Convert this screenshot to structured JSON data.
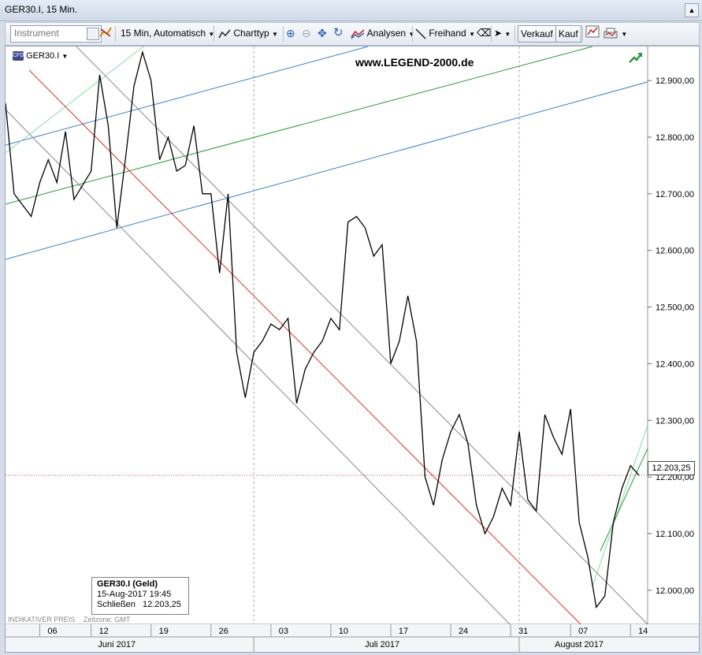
{
  "window": {
    "title": "GER30.I, 15 Min."
  },
  "toolbar": {
    "instrument_placeholder": "Instrument",
    "interval_label": "15 Min,",
    "scale_label": "Automatisch",
    "charttype_label": "Charttyp",
    "analysen_label": "Analysen",
    "freihand_label": "Freihand",
    "verkauf_label": "Verkauf",
    "kauf_label": "Kauf"
  },
  "chart": {
    "symbol": "GER30.I",
    "watermark": "www.LEGEND-2000.de",
    "current_price_label": "12.203,25",
    "indicative_price": "INDIKATIVER PREIS",
    "timezone": "Zeitzone: GMT",
    "info": {
      "title": "GER30.I (Geld)",
      "datetime": "15-Aug-2017 19:45",
      "close_label": "Schließen",
      "close_value": "12.203,25"
    },
    "colors": {
      "line": "#000000",
      "red_channel": "#e03020",
      "blue_channel": "#3a7fc8",
      "green_channel": "#2a9a3a",
      "grey_channel": "#888888",
      "mint": "#7de0a8"
    }
  },
  "chart_data": {
    "type": "line",
    "title": "GER30.I, 15 Min.",
    "y_tick_labels": [
      "12.900,00",
      "12.800,00",
      "12.700,00",
      "12.600,00",
      "12.500,00",
      "12.400,00",
      "12.300,00",
      "12.200,00",
      "12.100,00",
      "12.000,00"
    ],
    "y_ticks": [
      12900,
      12800,
      12700,
      12600,
      12500,
      12400,
      12300,
      12200,
      12100,
      12000
    ],
    "ylim": [
      11940,
      12960
    ],
    "x_tick_labels": [
      "06",
      "12",
      "19",
      "26",
      "03",
      "10",
      "17",
      "24",
      "31",
      "07",
      "14"
    ],
    "x_ticks": [
      "2017-06-06",
      "2017-06-12",
      "2017-06-19",
      "2017-06-26",
      "2017-07-03",
      "2017-07-10",
      "2017-07-17",
      "2017-07-24",
      "2017-07-31",
      "2017-08-07",
      "2017-08-14"
    ],
    "x_month_labels": [
      "Juni 2017",
      "Juli 2017",
      "August 2017"
    ],
    "xlim": [
      "2017-06-02",
      "2017-08-16"
    ],
    "series": [
      {
        "values": [
          [
            "2017-06-02",
            12860
          ],
          [
            "2017-06-03",
            12700
          ],
          [
            "2017-06-05",
            12660
          ],
          [
            "2017-06-06",
            12720
          ],
          [
            "2017-06-07",
            12760
          ],
          [
            "2017-06-08",
            12720
          ],
          [
            "2017-06-09",
            12810
          ],
          [
            "2017-06-10",
            12690
          ],
          [
            "2017-06-12",
            12740
          ],
          [
            "2017-06-13",
            12910
          ],
          [
            "2017-06-14",
            12820
          ],
          [
            "2017-06-15",
            12640
          ],
          [
            "2017-06-16",
            12760
          ],
          [
            "2017-06-17",
            12890
          ],
          [
            "2017-06-18",
            12950
          ],
          [
            "2017-06-19",
            12900
          ],
          [
            "2017-06-20",
            12760
          ],
          [
            "2017-06-21",
            12800
          ],
          [
            "2017-06-22",
            12740
          ],
          [
            "2017-06-23",
            12750
          ],
          [
            "2017-06-24",
            12820
          ],
          [
            "2017-06-25",
            12700
          ],
          [
            "2017-06-26",
            12700
          ],
          [
            "2017-06-27",
            12560
          ],
          [
            "2017-06-28",
            12700
          ],
          [
            "2017-06-29",
            12420
          ],
          [
            "2017-06-30",
            12340
          ],
          [
            "2017-07-01",
            12420
          ],
          [
            "2017-07-02",
            12440
          ],
          [
            "2017-07-03",
            12470
          ],
          [
            "2017-07-04",
            12460
          ],
          [
            "2017-07-05",
            12480
          ],
          [
            "2017-07-06",
            12330
          ],
          [
            "2017-07-07",
            12390
          ],
          [
            "2017-07-08",
            12420
          ],
          [
            "2017-07-09",
            12440
          ],
          [
            "2017-07-10",
            12480
          ],
          [
            "2017-07-11",
            12460
          ],
          [
            "2017-07-12",
            12650
          ],
          [
            "2017-07-13",
            12660
          ],
          [
            "2017-07-14",
            12640
          ],
          [
            "2017-07-15",
            12590
          ],
          [
            "2017-07-16",
            12610
          ],
          [
            "2017-07-17",
            12400
          ],
          [
            "2017-07-18",
            12440
          ],
          [
            "2017-07-19",
            12520
          ],
          [
            "2017-07-20",
            12440
          ],
          [
            "2017-07-21",
            12200
          ],
          [
            "2017-07-22",
            12150
          ],
          [
            "2017-07-23",
            12230
          ],
          [
            "2017-07-24",
            12280
          ],
          [
            "2017-07-25",
            12310
          ],
          [
            "2017-07-26",
            12260
          ],
          [
            "2017-07-27",
            12150
          ],
          [
            "2017-07-28",
            12100
          ],
          [
            "2017-07-29",
            12130
          ],
          [
            "2017-07-30",
            12180
          ],
          [
            "2017-07-31",
            12150
          ],
          [
            "2017-08-01",
            12280
          ],
          [
            "2017-08-02",
            12160
          ],
          [
            "2017-08-03",
            12140
          ],
          [
            "2017-08-04",
            12310
          ],
          [
            "2017-08-05",
            12270
          ],
          [
            "2017-08-06",
            12240
          ],
          [
            "2017-08-07",
            12320
          ],
          [
            "2017-08-08",
            12120
          ],
          [
            "2017-08-09",
            12060
          ],
          [
            "2017-08-10",
            11970
          ],
          [
            "2017-08-11",
            11990
          ],
          [
            "2017-08-12",
            12120
          ],
          [
            "2017-08-13",
            12180
          ],
          [
            "2017-08-14",
            12220
          ],
          [
            "2017-08-15",
            12203
          ]
        ]
      }
    ]
  }
}
